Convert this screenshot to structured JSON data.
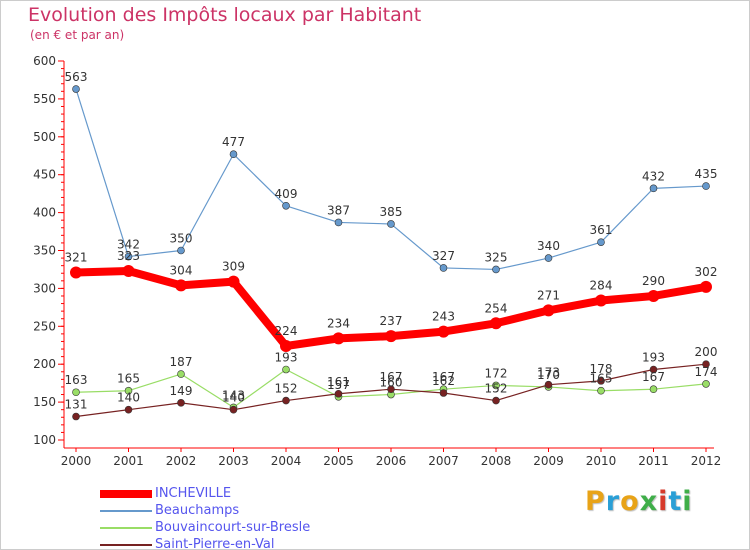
{
  "title": "Evolution des Impôts locaux par Habitant",
  "subtitle": "(en € et par an)",
  "logo": {
    "text": "Proxiti",
    "colors": [
      "#e8a317",
      "#2a9fd6",
      "#e8a317",
      "#3fae49",
      "#d63a2a",
      "#2a9fd6",
      "#3fae49"
    ]
  },
  "chart_data": {
    "type": "line",
    "x": [
      "2000",
      "2001",
      "2002",
      "2003",
      "2004",
      "2005",
      "2006",
      "2007",
      "2008",
      "2009",
      "2010",
      "2011",
      "2012"
    ],
    "ylim": [
      100,
      600
    ],
    "yticks": [
      "100",
      "150",
      "200",
      "250",
      "300",
      "350",
      "400",
      "450",
      "500",
      "550",
      "600"
    ],
    "grid": false,
    "legend_position": "bottom-left",
    "series": [
      {
        "name": "INCHEVILLE",
        "color": "#ff0000",
        "values": [
          321,
          323,
          304,
          309,
          224,
          234,
          237,
          243,
          254,
          271,
          284,
          290,
          302
        ],
        "labels": [
          "321",
          "323",
          "304",
          "309",
          "224",
          "234",
          "237",
          "243",
          "254",
          "271",
          "284",
          "290",
          "302"
        ]
      },
      {
        "name": "Beauchamps",
        "color": "#6699cc",
        "values": [
          563,
          342,
          350,
          477,
          409,
          387,
          385,
          327,
          325,
          340,
          361,
          432,
          435
        ],
        "labels": [
          "563",
          "342",
          "350",
          "477",
          "409",
          "387",
          "385",
          "327",
          "325",
          "340",
          "361",
          "432",
          "435"
        ]
      },
      {
        "name": "Bouvaincourt-sur-Bresle",
        "color": "#99dd66",
        "values": [
          163,
          165,
          187,
          143,
          193,
          157,
          160,
          167,
          172,
          170,
          165,
          167,
          174
        ],
        "labels": [
          "163",
          "165",
          "187",
          "143",
          "193",
          "157",
          "160",
          "167",
          "172",
          "170",
          "165",
          "167",
          "174"
        ]
      },
      {
        "name": "Saint-Pierre-en-Val",
        "color": "#772222",
        "values": [
          131,
          140,
          149,
          140,
          152,
          161,
          167,
          162,
          152,
          173,
          178,
          193,
          200
        ],
        "labels": [
          "131",
          "140",
          "149",
          "140",
          "152",
          "161",
          "167",
          "162",
          "152",
          "173",
          "178",
          "193",
          "200"
        ]
      }
    ]
  }
}
